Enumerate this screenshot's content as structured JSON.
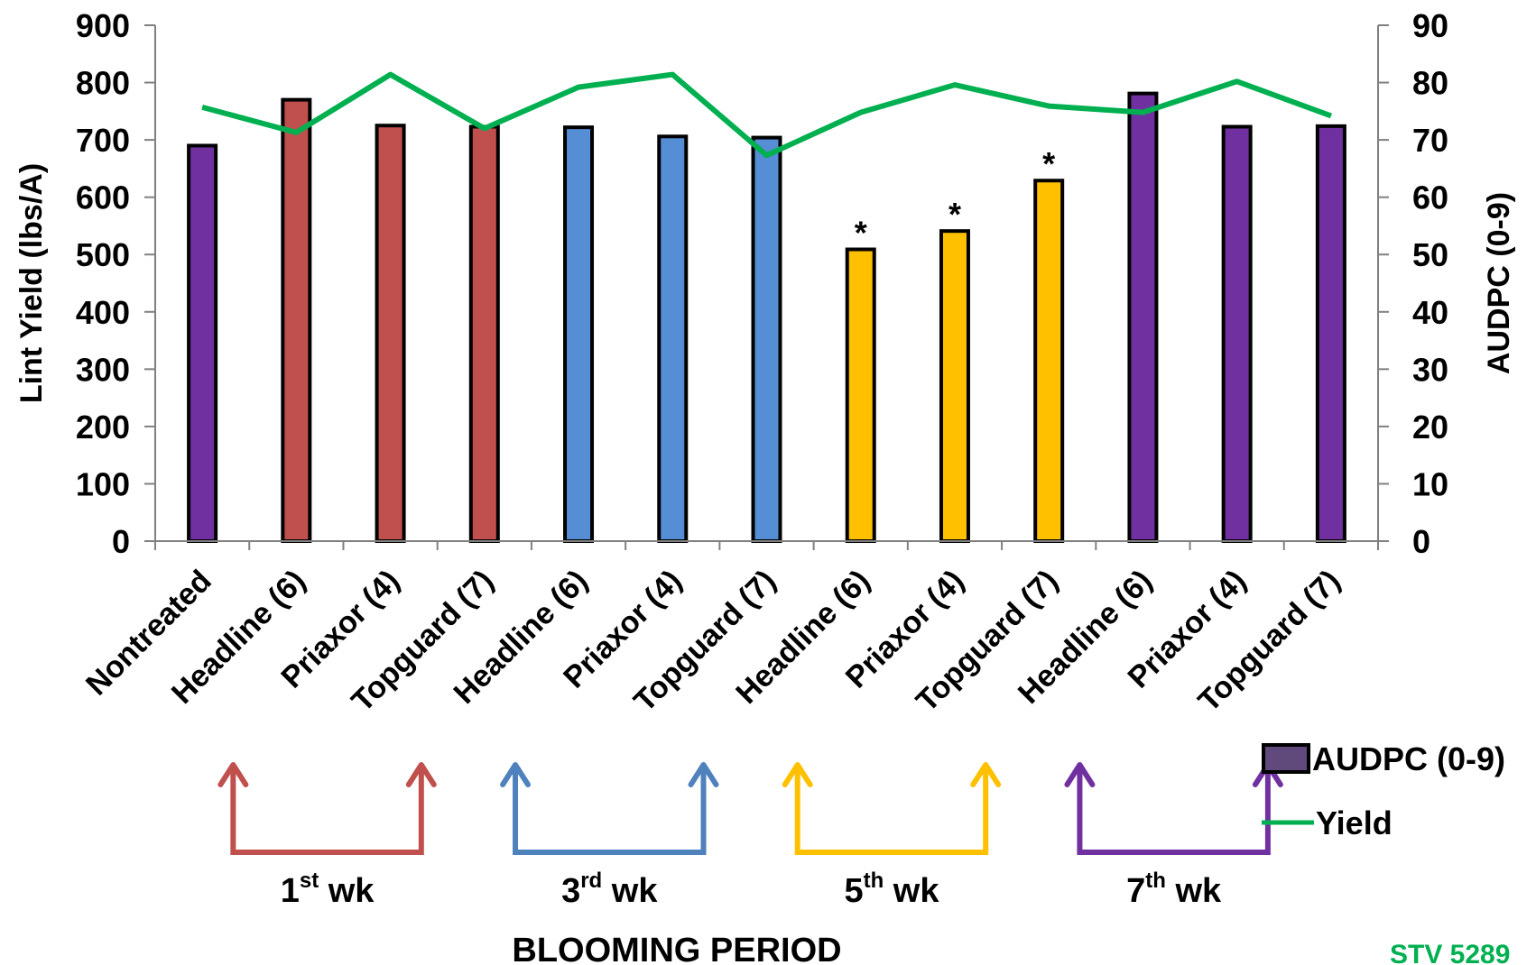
{
  "chart_data": {
    "type": "bar",
    "categories": [
      "Nontreated",
      "Headline (6)",
      "Priaxor (4)",
      "Topguard (7)",
      "Headline (6)",
      "Priaxor (4)",
      "Topguard (7)",
      "Headline (6)",
      "Priaxor (4)",
      "Topguard (7)",
      "Headline (6)",
      "Priaxor (4)",
      "Topguard (7)"
    ],
    "series": [
      {
        "name": "AUDPC (0-9)",
        "kind": "bar",
        "axis": "right",
        "values": [
          69,
          77,
          72.5,
          72.3,
          72.2,
          70.6,
          70.4,
          50.9,
          54.1,
          62.9,
          78.1,
          72.3,
          72.4
        ],
        "colors": [
          "#7030a0",
          "#c0504d",
          "#c0504d",
          "#c0504d",
          "#558ed5",
          "#558ed5",
          "#558ed5",
          "#ffc000",
          "#ffc000",
          "#ffc000",
          "#7030a0",
          "#7030a0",
          "#7030a0"
        ],
        "significant": [
          false,
          false,
          false,
          false,
          false,
          false,
          false,
          true,
          true,
          true,
          false,
          false,
          false
        ],
        "legend_color": "#604a7b"
      },
      {
        "name": "Yield",
        "kind": "line",
        "axis": "left",
        "color": "#00b050",
        "values": [
          757,
          713,
          814,
          720,
          792,
          814,
          673,
          748,
          796,
          759,
          748,
          802,
          742
        ]
      }
    ],
    "y_left": {
      "label": "Lint Yield (lbs/A)",
      "min": 0,
      "max": 900,
      "ticks": [
        "0",
        "100",
        "200",
        "300",
        "400",
        "500",
        "600",
        "700",
        "800",
        "900"
      ]
    },
    "y_right": {
      "label": "AUDPC (0-9)",
      "min": 0,
      "max": 90,
      "ticks": [
        "0",
        "10",
        "20",
        "30",
        "40",
        "50",
        "60",
        "70",
        "80",
        "90"
      ]
    },
    "significance_marker": "*",
    "grid": false,
    "legend_position": "bottom-right",
    "legend": [
      {
        "label": "AUDPC (0-9)",
        "type": "bar"
      },
      {
        "label": "Yield",
        "type": "line"
      }
    ],
    "groups": [
      {
        "num": "1",
        "sup": "st",
        "suffix": " wk",
        "color": "#c0504d",
        "from": 1,
        "to": 3
      },
      {
        "num": "3",
        "sup": "rd",
        "suffix": " wk",
        "color": "#4f81bd",
        "from": 4,
        "to": 6
      },
      {
        "num": "5",
        "sup": "th",
        "suffix": " wk",
        "color": "#ffc000",
        "from": 7,
        "to": 9
      },
      {
        "num": "7",
        "sup": "th",
        "suffix": " wk",
        "color": "#7030a0",
        "from": 10,
        "to": 12
      }
    ],
    "xlabel": "BLOOMING PERIOD",
    "corner_note": "STV 5289",
    "corner_note_color": "#00b050"
  }
}
